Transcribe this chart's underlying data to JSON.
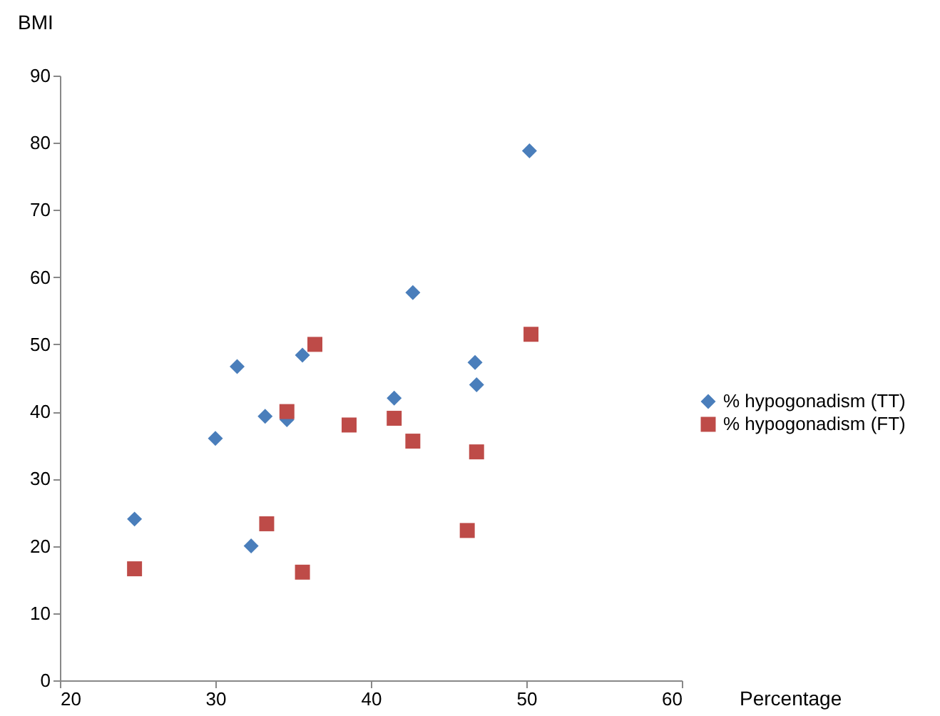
{
  "chart_data": {
    "type": "scatter",
    "xlabel": "Percentage",
    "ylabel": "BMI",
    "xlim": [
      20,
      60
    ],
    "ylim": [
      0,
      90
    ],
    "xticks": [
      20,
      30,
      40,
      50,
      60
    ],
    "yticks": [
      0,
      10,
      20,
      30,
      40,
      50,
      60,
      70,
      80,
      90
    ],
    "grid": false,
    "legend": "right",
    "series": [
      {
        "name": "% hypogonadism (TT)",
        "color": "#4a7ebb",
        "marker": "diamond",
        "x": [
          24.8,
          30,
          31.4,
          32.3,
          33.2,
          34.6,
          35.6,
          41.5,
          42.7,
          46.7,
          46.8,
          50.2
        ],
        "values": [
          24,
          36,
          46.7,
          20,
          39.3,
          38.8,
          48.4,
          42,
          57.7,
          47.3,
          44,
          78.8
        ]
      },
      {
        "name": "% hypogonadism (FT)",
        "color": "#be4b48",
        "marker": "square",
        "x": [
          24.8,
          33.3,
          34.6,
          35.6,
          36.4,
          38.6,
          41.5,
          42.7,
          46.2,
          46.8,
          50.3
        ],
        "values": [
          16.6,
          23.3,
          40,
          16.1,
          50,
          38,
          39,
          35.6,
          22.3,
          34,
          51.5
        ]
      }
    ]
  }
}
